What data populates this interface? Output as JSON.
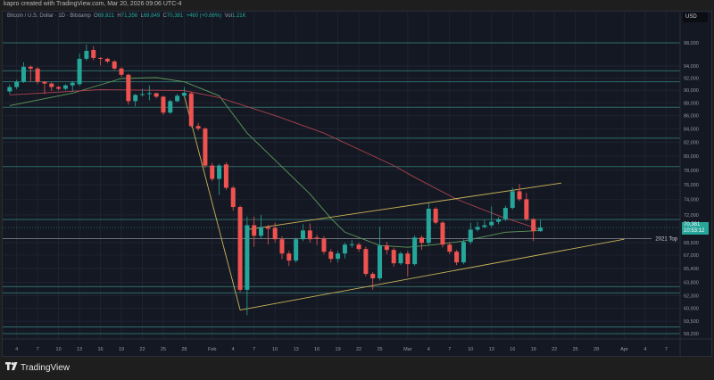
{
  "header": {
    "created_by": "kapro created with TradingView.com, Mar 20, 2026 09:06 UTC-4",
    "symbol": "Bitcoin / U.S. Dollar · 1D · Bitstamp",
    "open_label": "O",
    "open": "69,921",
    "high_label": "H",
    "high": "71,356",
    "low_label": "L",
    "low": "69,849",
    "close_label": "C",
    "close": "70,381",
    "change": "+460 (+0.66%)",
    "vol_label": "Vol",
    "vol": "1.21K"
  },
  "currency_button": "USD",
  "last_price": {
    "price": "70,381",
    "countdown": "10:53:12"
  },
  "footer": {
    "logo_text": "TradingView",
    "logo_mark": "TV"
  },
  "colors": {
    "up": "#26a69a",
    "down": "#ef5350",
    "background": "#141823",
    "level": "#2e6b6a",
    "trendline": "#c9b458",
    "ma_fast": "#5e9a5a",
    "ma_slow": "#a8424e",
    "reference": "#8a8e99"
  },
  "chart_data": {
    "type": "candlestick",
    "scale": "log",
    "ylim": [
      57640,
      103470
    ],
    "xlim": [
      "2026-01-02",
      "2026-04-09"
    ],
    "grid": true,
    "price_ticks": [
      "98,000",
      "94,000",
      "92,000",
      "90,000",
      "88,000",
      "86,000",
      "84,000",
      "82,000",
      "80,000",
      "78,000",
      "76,000",
      "74,000",
      "72,000",
      "68,500",
      "67,000",
      "65,400",
      "63,800",
      "62,300",
      "60,900",
      "59,500",
      "58,200"
    ],
    "time_ticks": [
      {
        "label": "4",
        "date": "2026-01-04"
      },
      {
        "label": "7",
        "date": "2026-01-07"
      },
      {
        "label": "10",
        "date": "2026-01-10"
      },
      {
        "label": "13",
        "date": "2026-01-13"
      },
      {
        "label": "16",
        "date": "2026-01-16"
      },
      {
        "label": "19",
        "date": "2026-01-19"
      },
      {
        "label": "22",
        "date": "2026-01-22"
      },
      {
        "label": "25",
        "date": "2026-01-25"
      },
      {
        "label": "28",
        "date": "2026-01-28"
      },
      {
        "label": "Feb",
        "date": "2026-02-01"
      },
      {
        "label": "4",
        "date": "2026-02-04"
      },
      {
        "label": "7",
        "date": "2026-02-07"
      },
      {
        "label": "10",
        "date": "2026-02-10"
      },
      {
        "label": "13",
        "date": "2026-02-13"
      },
      {
        "label": "16",
        "date": "2026-02-16"
      },
      {
        "label": "19",
        "date": "2026-02-19"
      },
      {
        "label": "22",
        "date": "2026-02-22"
      },
      {
        "label": "25",
        "date": "2026-02-25"
      },
      {
        "label": "Mar",
        "date": "2026-03-01"
      },
      {
        "label": "4",
        "date": "2026-03-04"
      },
      {
        "label": "7",
        "date": "2026-03-07"
      },
      {
        "label": "10",
        "date": "2026-03-10"
      },
      {
        "label": "13",
        "date": "2026-03-13"
      },
      {
        "label": "16",
        "date": "2026-03-16"
      },
      {
        "label": "19",
        "date": "2026-03-19"
      },
      {
        "label": "22",
        "date": "2026-03-22"
      },
      {
        "label": "25",
        "date": "2026-03-25"
      },
      {
        "label": "28",
        "date": "2026-03-28"
      },
      {
        "label": "Apr",
        "date": "2026-04-01"
      },
      {
        "label": "4",
        "date": "2026-04-04"
      },
      {
        "label": "7",
        "date": "2026-04-07"
      }
    ],
    "candles": [
      [
        "2026-01-03",
        89820,
        90960,
        89400,
        90530
      ],
      [
        "2026-01-04",
        90530,
        91700,
        90200,
        91390
      ],
      [
        "2026-01-05",
        91390,
        94620,
        91200,
        93880
      ],
      [
        "2026-01-06",
        93880,
        94100,
        91400,
        93580
      ],
      [
        "2026-01-07",
        93580,
        93800,
        91000,
        91390
      ],
      [
        "2026-01-08",
        91390,
        91500,
        89400,
        91100
      ],
      [
        "2026-01-09",
        91100,
        91300,
        89900,
        90530
      ],
      [
        "2026-01-10",
        90530,
        90700,
        90000,
        90250
      ],
      [
        "2026-01-11",
        90250,
        91000,
        90000,
        90800
      ],
      [
        "2026-01-12",
        90800,
        91500,
        89800,
        91250
      ],
      [
        "2026-01-13",
        91000,
        96130,
        90700,
        95230
      ],
      [
        "2026-01-14",
        95230,
        97690,
        94900,
        96600
      ],
      [
        "2026-01-15",
        96750,
        97400,
        95000,
        95380
      ],
      [
        "2026-01-16",
        95380,
        95500,
        94100,
        95230
      ],
      [
        "2026-01-17",
        95230,
        95400,
        94500,
        94770
      ],
      [
        "2026-01-18",
        94770,
        95000,
        93300,
        93580
      ],
      [
        "2026-01-19",
        93580,
        93800,
        92200,
        92550
      ],
      [
        "2026-01-20",
        92550,
        92700,
        87700,
        88270
      ],
      [
        "2026-01-21",
        88270,
        89400,
        87430,
        89260
      ],
      [
        "2026-01-22",
        89260,
        90250,
        89000,
        89400
      ],
      [
        "2026-01-23",
        89400,
        90800,
        88400,
        89540
      ],
      [
        "2026-01-24",
        89540,
        89600,
        88700,
        88980
      ],
      [
        "2026-01-25",
        88980,
        89100,
        86100,
        86470
      ],
      [
        "2026-01-26",
        86470,
        88500,
        86300,
        88270
      ],
      [
        "2026-01-27",
        88270,
        89400,
        88100,
        89120
      ],
      [
        "2026-01-28",
        89120,
        90530,
        88900,
        89600
      ],
      [
        "2026-01-29",
        89500,
        89700,
        84200,
        84420
      ],
      [
        "2026-01-30",
        84420,
        84900,
        83700,
        84030
      ],
      [
        "2026-01-31",
        84030,
        84200,
        78300,
        78650
      ],
      [
        "2026-02-01",
        78650,
        79000,
        76500,
        76790
      ],
      [
        "2026-02-02",
        76790,
        78900,
        74630,
        78650
      ],
      [
        "2026-02-03",
        78800,
        79100,
        75300,
        75580
      ],
      [
        "2026-02-04",
        75580,
        75800,
        72560,
        73020
      ],
      [
        "2026-02-05",
        73020,
        73200,
        62700,
        62950
      ],
      [
        "2026-02-06",
        62950,
        71770,
        60150,
        70670
      ],
      [
        "2026-02-07",
        70670,
        71770,
        68000,
        69350
      ],
      [
        "2026-02-08",
        69350,
        72000,
        69000,
        70450
      ],
      [
        "2026-02-09",
        70450,
        70700,
        68260,
        70230
      ],
      [
        "2026-02-10",
        70340,
        71000,
        68500,
        68920
      ],
      [
        "2026-02-11",
        68920,
        69300,
        66500,
        67180
      ],
      [
        "2026-02-12",
        67180,
        67500,
        65700,
        66330
      ],
      [
        "2026-02-13",
        66330,
        69100,
        66100,
        68920
      ],
      [
        "2026-02-14",
        68920,
        70800,
        68700,
        70010
      ],
      [
        "2026-02-15",
        70010,
        70900,
        68500,
        68920
      ],
      [
        "2026-02-16",
        69130,
        69500,
        68200,
        69000
      ],
      [
        "2026-02-17",
        69000,
        69300,
        67100,
        67400
      ],
      [
        "2026-02-18",
        67400,
        67700,
        66100,
        66540
      ],
      [
        "2026-02-19",
        66540,
        67500,
        66100,
        67180
      ],
      [
        "2026-02-20",
        67180,
        68500,
        66600,
        68260
      ],
      [
        "2026-02-21",
        68260,
        68800,
        67900,
        68300
      ],
      [
        "2026-02-22",
        68260,
        68500,
        67400,
        67720
      ],
      [
        "2026-02-23",
        67720,
        68000,
        64500,
        64770
      ],
      [
        "2026-02-24",
        64770,
        65000,
        62950,
        64260
      ],
      [
        "2026-02-25",
        64260,
        70450,
        64000,
        68150
      ],
      [
        "2026-02-26",
        68150,
        68600,
        67100,
        67610
      ],
      [
        "2026-02-27",
        67610,
        67900,
        65600,
        66010
      ],
      [
        "2026-02-28",
        66010,
        67400,
        65800,
        67180
      ],
      [
        "2026-03-01",
        67180,
        67500,
        64500,
        65910
      ],
      [
        "2026-03-02",
        65910,
        69400,
        65700,
        69130
      ],
      [
        "2026-03-03",
        69130,
        69400,
        67600,
        68480
      ],
      [
        "2026-03-04",
        68480,
        73500,
        68200,
        72790
      ],
      [
        "2026-03-05",
        72790,
        73000,
        70800,
        71000
      ],
      [
        "2026-03-06",
        71000,
        71200,
        67900,
        68260
      ],
      [
        "2026-03-07",
        68260,
        68600,
        67100,
        67400
      ],
      [
        "2026-03-08",
        67400,
        67600,
        65800,
        66120
      ],
      [
        "2026-03-09",
        66120,
        68900,
        65900,
        68590
      ],
      [
        "2026-03-10",
        68590,
        71000,
        68300,
        70120
      ],
      [
        "2026-03-11",
        70120,
        71100,
        69900,
        70450
      ],
      [
        "2026-03-12",
        70450,
        71400,
        70300,
        70670
      ],
      [
        "2026-03-13",
        70670,
        73100,
        70400,
        71110
      ],
      [
        "2026-03-14",
        71110,
        71700,
        70800,
        71440
      ],
      [
        "2026-03-15",
        71440,
        73200,
        71200,
        72900
      ],
      [
        "2026-03-16",
        72900,
        75600,
        72700,
        75110
      ],
      [
        "2026-03-17",
        75110,
        76100,
        73800,
        74040
      ],
      [
        "2026-03-18",
        74040,
        74900,
        71200,
        71440
      ],
      [
        "2026-03-19",
        71440,
        71600,
        68700,
        69921
      ],
      [
        "2026-03-20",
        69921,
        71356,
        69849,
        70381
      ]
    ],
    "moving_averages": [
      {
        "role": "fast",
        "points": [
          [
            "2026-01-03",
            87570
          ],
          [
            "2026-01-12",
            89540
          ],
          [
            "2026-01-19",
            91930
          ],
          [
            "2026-01-24",
            92080
          ],
          [
            "2026-01-28",
            91390
          ],
          [
            "2026-02-02",
            89120
          ],
          [
            "2026-02-06",
            83360
          ],
          [
            "2026-02-15",
            74750
          ],
          [
            "2026-02-18",
            71550
          ],
          [
            "2026-02-20",
            69790
          ],
          [
            "2026-02-25",
            68150
          ],
          [
            "2026-03-01",
            67930
          ],
          [
            "2026-03-05",
            68260
          ],
          [
            "2026-03-09",
            68700
          ],
          [
            "2026-03-15",
            69790
          ],
          [
            "2026-03-20",
            70010
          ]
        ]
      },
      {
        "role": "slow",
        "points": [
          [
            "2026-01-03",
            89260
          ],
          [
            "2026-01-16",
            90110
          ],
          [
            "2026-01-28",
            89960
          ],
          [
            "2026-02-02",
            88840
          ],
          [
            "2026-02-10",
            86010
          ],
          [
            "2026-02-17",
            83360
          ],
          [
            "2026-02-27",
            78650
          ],
          [
            "2026-03-02",
            77010
          ],
          [
            "2026-03-08",
            74040
          ],
          [
            "2026-03-14",
            71890
          ],
          [
            "2026-03-20",
            70120
          ]
        ]
      }
    ],
    "trendlines": [
      {
        "from": [
          "2026-01-28",
          89120
        ],
        "to": [
          "2026-02-05",
          60710
        ]
      },
      {
        "from": [
          "2026-02-05",
          60710
        ],
        "to": [
          "2026-04-01",
          68920
        ]
      },
      {
        "from": [
          "2026-02-06",
          70120
        ],
        "to": [
          "2026-03-23",
          76220
        ]
      }
    ],
    "levels": [
      98000,
      93200,
      91400,
      87300,
      82600,
      78500,
      71400,
      63300,
      62600,
      58900,
      58200
    ],
    "reference_line": {
      "price": 69000,
      "label": "2021 Top"
    }
  }
}
